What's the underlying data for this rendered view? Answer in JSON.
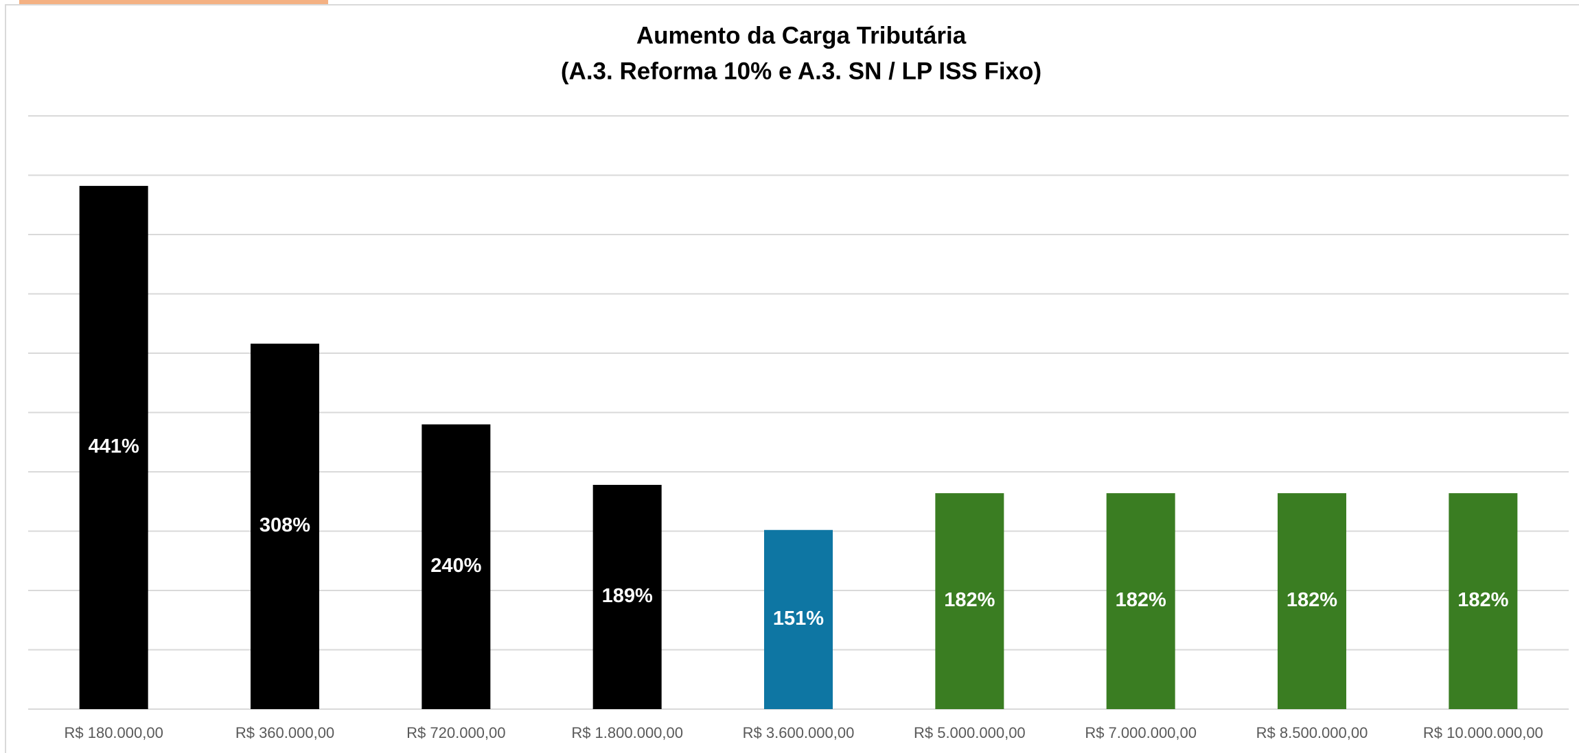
{
  "chart_data": {
    "type": "bar",
    "title": "Aumento da Carga Tributária",
    "subtitle": "(A.3. Reforma 10% e A.3. SN / LP ISS Fixo)",
    "categories": [
      "R$ 180.000,00",
      "R$ 360.000,00",
      "R$ 720.000,00",
      "R$ 1.800.000,00",
      "R$ 3.600.000,00",
      "R$ 5.000.000,00",
      "R$ 7.000.000,00",
      "R$ 8.500.000,00",
      "R$ 10.000.000,00"
    ],
    "values": [
      441,
      308,
      240,
      189,
      151,
      182,
      182,
      182,
      182
    ],
    "value_labels": [
      "441%",
      "308%",
      "240%",
      "189%",
      "151%",
      "182%",
      "182%",
      "182%",
      "182%"
    ],
    "colors": [
      "#000000",
      "#000000",
      "#000000",
      "#000000",
      "#0e76a3",
      "#3a7d22",
      "#3a7d22",
      "#3a7d22",
      "#3a7d22"
    ],
    "ylim": [
      0,
      500
    ],
    "yticks": [
      0,
      50,
      100,
      150,
      200,
      250,
      300,
      350,
      400,
      450,
      500
    ],
    "grid": true
  }
}
